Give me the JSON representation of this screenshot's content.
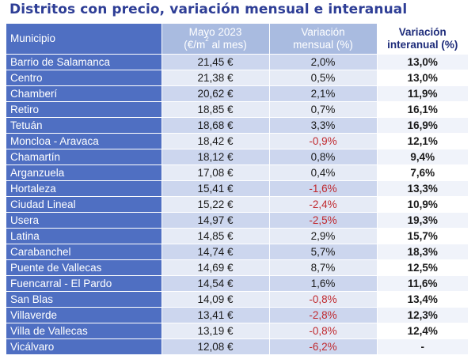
{
  "title": "Distritos con precio, variación mensual e interanual",
  "headers": {
    "municipio": "Municipio",
    "mayo_line1": "Mayo 2023",
    "mayo_line2_pre": "(€/m",
    "mayo_line2_sup": "2",
    "mayo_line2_post": " al mes)",
    "mensual_line1": "Variación",
    "mensual_line2": "mensual (%)",
    "interanual_line1": "Variación",
    "interanual_line2": "interanual (%)"
  },
  "rows": [
    {
      "name": "Barrio de Salamanca",
      "price": "21,45 €",
      "mensual": "2,0%",
      "interanual": "13,0%",
      "mensual_negative": false
    },
    {
      "name": "Centro",
      "price": "21,38 €",
      "mensual": "0,5%",
      "interanual": "13,0%",
      "mensual_negative": false
    },
    {
      "name": "Chamberí",
      "price": "20,62 €",
      "mensual": "2,1%",
      "interanual": "11,9%",
      "mensual_negative": false
    },
    {
      "name": "Retiro",
      "price": "18,85 €",
      "mensual": "0,7%",
      "interanual": "16,1%",
      "mensual_negative": false
    },
    {
      "name": "Tetuán",
      "price": "18,68 €",
      "mensual": "3,3%",
      "interanual": "16,9%",
      "mensual_negative": false
    },
    {
      "name": "Moncloa - Aravaca",
      "price": "18,42 €",
      "mensual": "-0,9%",
      "interanual": "12,1%",
      "mensual_negative": true
    },
    {
      "name": "Chamartín",
      "price": "18,12 €",
      "mensual": "0,8%",
      "interanual": "9,4%",
      "mensual_negative": false
    },
    {
      "name": "Arganzuela",
      "price": "17,08 €",
      "mensual": "0,4%",
      "interanual": "7,6%",
      "mensual_negative": false
    },
    {
      "name": "Hortaleza",
      "price": "15,41 €",
      "mensual": "-1,6%",
      "interanual": "13,3%",
      "mensual_negative": true
    },
    {
      "name": "Ciudad Lineal",
      "price": "15,22 €",
      "mensual": "-2,4%",
      "interanual": "10,9%",
      "mensual_negative": true
    },
    {
      "name": "Usera",
      "price": "14,97 €",
      "mensual": "-2,5%",
      "interanual": "19,3%",
      "mensual_negative": true
    },
    {
      "name": "Latina",
      "price": "14,85 €",
      "mensual": "2,9%",
      "interanual": "15,7%",
      "mensual_negative": false
    },
    {
      "name": "Carabanchel",
      "price": "14,74 €",
      "mensual": "5,7%",
      "interanual": "18,3%",
      "mensual_negative": false
    },
    {
      "name": "Puente de Vallecas",
      "price": "14,69 €",
      "mensual": "8,7%",
      "interanual": "12,5%",
      "mensual_negative": false
    },
    {
      "name": "Fuencarral - El Pardo",
      "price": "14,54 €",
      "mensual": "1,6%",
      "interanual": "11,6%",
      "mensual_negative": false
    },
    {
      "name": "San Blas",
      "price": "14,09 €",
      "mensual": "-0,8%",
      "interanual": "13,4%",
      "mensual_negative": true
    },
    {
      "name": "Villaverde",
      "price": "13,41 €",
      "mensual": "-2,8%",
      "interanual": "12,3%",
      "mensual_negative": true
    },
    {
      "name": "Villa de Vallecas",
      "price": "13,19 €",
      "mensual": "-0,8%",
      "interanual": "12,4%",
      "mensual_negative": true
    },
    {
      "name": "Vicálvaro",
      "price": "12,08 €",
      "mensual": "-6,2%",
      "interanual": "-",
      "mensual_negative": true
    }
  ],
  "colors": {
    "title": "#2e3e96",
    "header_blue": "#4f6fc2",
    "header_light": "#a9bbe0",
    "row_odd": "#ccd6ee",
    "row_even": "#e6ebf6",
    "negative_text": "#c0282d"
  }
}
